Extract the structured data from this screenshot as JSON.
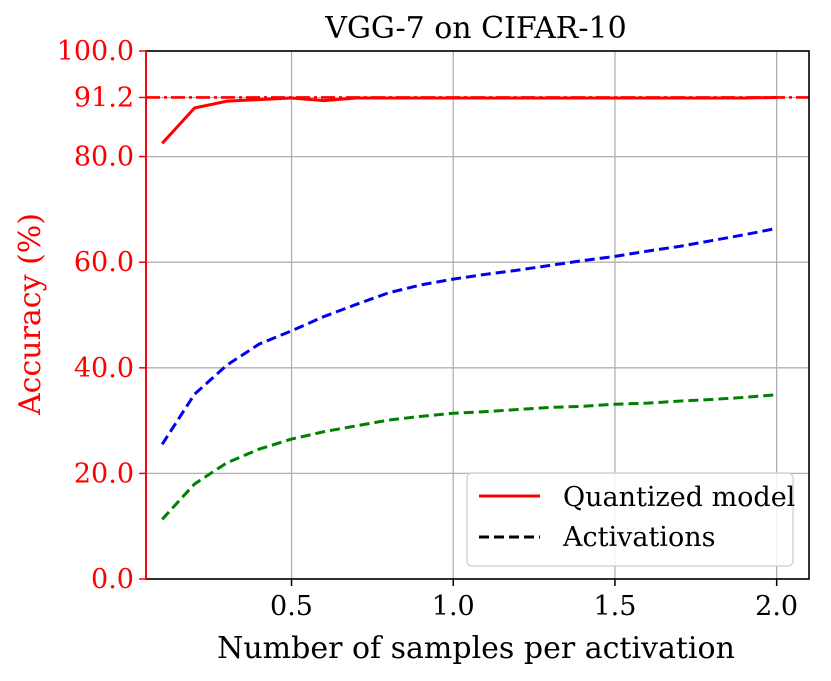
{
  "chart_data": {
    "type": "line",
    "title": "VGG-7 on CIFAR-10",
    "xlabel": "Number of samples per activation",
    "ylabel": "Accuracy (%)",
    "xlim": [
      0.05,
      2.1
    ],
    "ylim": [
      0,
      100
    ],
    "x_ticks": [
      0.5,
      1.0,
      1.5,
      2.0
    ],
    "x_tick_labels": [
      "0.5",
      "1.0",
      "1.5",
      "2.0"
    ],
    "y_ticks": [
      0,
      20,
      40,
      60,
      80,
      91.2,
      100
    ],
    "y_tick_labels": [
      "0.0",
      "20.0",
      "40.0",
      "60.0",
      "80.0",
      "91.2",
      "100.0"
    ],
    "grid": true,
    "reference_line": {
      "y": 91.2,
      "color": "#ff0000",
      "style": "dash-dot"
    },
    "x": [
      0.1,
      0.2,
      0.3,
      0.4,
      0.5,
      0.6,
      0.7,
      0.8,
      0.9,
      1.0,
      1.1,
      1.2,
      1.3,
      1.4,
      1.5,
      1.6,
      1.7,
      1.8,
      1.9,
      2.0
    ],
    "series": [
      {
        "name": "Quantized model",
        "color": "#ff0000",
        "style": "solid",
        "values": [
          82.5,
          89.2,
          90.5,
          90.8,
          91.1,
          90.6,
          91.1,
          91.1,
          91.1,
          91.1,
          91.1,
          91.1,
          91.1,
          91.1,
          91.1,
          91.1,
          91.1,
          91.1,
          91.1,
          91.2
        ]
      },
      {
        "name": "Activations (blue)",
        "color": "#0000ee",
        "style": "dashed",
        "values": [
          25.5,
          35.0,
          40.5,
          44.5,
          47.0,
          49.7,
          52.0,
          54.2,
          55.7,
          56.8,
          57.7,
          58.5,
          59.4,
          60.3,
          61.1,
          62.1,
          63.0,
          64.1,
          65.2,
          66.4
        ]
      },
      {
        "name": "Activations (green)",
        "color": "#008000",
        "style": "dashed",
        "values": [
          11.3,
          18.0,
          22.0,
          24.6,
          26.5,
          27.9,
          29.0,
          30.1,
          30.8,
          31.4,
          31.7,
          32.1,
          32.5,
          32.7,
          33.1,
          33.3,
          33.7,
          34.0,
          34.4,
          34.9
        ]
      }
    ],
    "legend": {
      "position": "lower-right",
      "entries": [
        {
          "label": "Quantized model",
          "color": "#000000",
          "style": "solid",
          "swatch_color": "#ff0000"
        },
        {
          "label": "Activations",
          "color": "#000000",
          "style": "dashed",
          "swatch_color": "#000000"
        }
      ]
    },
    "colors": {
      "axis": "#000000",
      "grid": "#b0b0b0",
      "accent": "#ff0000"
    }
  }
}
